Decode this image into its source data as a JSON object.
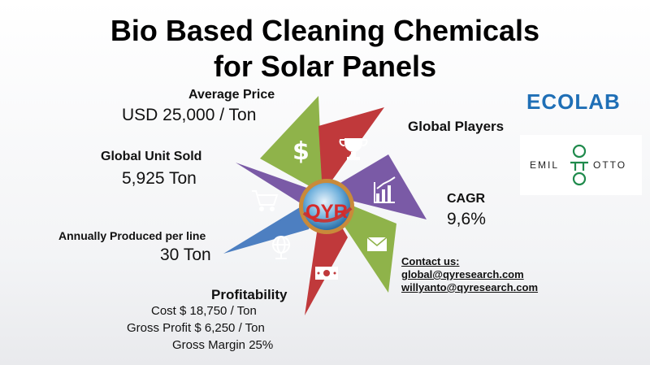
{
  "title_line1": "Bio Based Cleaning Chemicals",
  "title_line2": "for Solar Panels",
  "average_price": {
    "label": "Average Price",
    "value": "USD 25,000 / Ton"
  },
  "global_unit_sold": {
    "label": "Global Unit Sold",
    "value": "5,925 Ton"
  },
  "annually_produced": {
    "label": "Annually Produced per line",
    "value": "30 Ton"
  },
  "profitability": {
    "label": "Profitability",
    "cost": "Cost $ 18,750 / Ton",
    "gross_profit": "Gross Profit $ 6,250 / Ton",
    "gross_margin": "Gross Margin 25%"
  },
  "global_players": {
    "label": "Global Players"
  },
  "cagr": {
    "label": "CAGR",
    "value": "9,6%"
  },
  "contact": {
    "heading": "Contact us:",
    "email1": "global@qyresearch.com",
    "email2": "willyanto@qyresearch.com"
  },
  "center_logo": "QYR",
  "logos": {
    "ecolab": "ECOLAB",
    "emil_left": "EMIL",
    "emil_right": "OTTO"
  },
  "colors": {
    "green": "#8fb34a",
    "red": "#c0393b",
    "purple": "#7a5aa6",
    "blue": "#4d7fc1",
    "ecolab": "#1f6fb6",
    "otto_green": "#1f8a4c"
  },
  "segments": [
    {
      "icon": "dollar-icon",
      "color": "#8fb34a"
    },
    {
      "icon": "trophy-icon",
      "color": "#c0393b"
    },
    {
      "icon": "growth-chart-icon",
      "color": "#7a5aa6"
    },
    {
      "icon": "envelope-icon",
      "color": "#8fb34a"
    },
    {
      "icon": "money-bill-icon",
      "color": "#c0393b"
    },
    {
      "icon": "globe-icon",
      "color": "#4d7fc1"
    },
    {
      "icon": "shopping-cart-icon",
      "color": "#7a5aa6"
    }
  ]
}
